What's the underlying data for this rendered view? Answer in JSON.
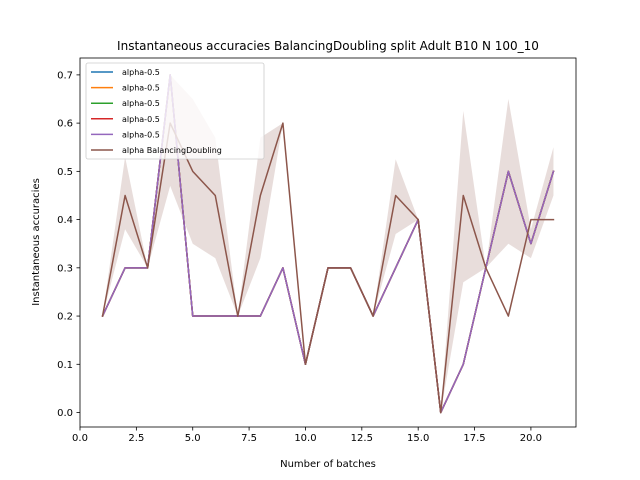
{
  "chart_data": {
    "type": "line",
    "title": "Instantaneous accuracies BalancingDoubling split Adult B10 N 100_10",
    "xlabel": "Number of batches",
    "ylabel": "Instantaneous accuracies",
    "xlim": [
      0.0,
      22.0
    ],
    "ylim": [
      -0.03,
      0.735
    ],
    "xticks": [
      0.0,
      2.5,
      5.0,
      7.5,
      10.0,
      12.5,
      15.0,
      17.5,
      20.0
    ],
    "xtick_labels": [
      "0.0",
      "2.5",
      "5.0",
      "7.5",
      "10.0",
      "12.5",
      "15.0",
      "17.5",
      "20.0"
    ],
    "yticks": [
      0.0,
      0.1,
      0.2,
      0.3,
      0.4,
      0.5,
      0.6,
      0.7
    ],
    "ytick_labels": [
      "0.0",
      "0.1",
      "0.2",
      "0.3",
      "0.4",
      "0.5",
      "0.6",
      "0.7"
    ],
    "grid": false,
    "legend_position": "top-left",
    "x": [
      1,
      2,
      3,
      4,
      5,
      6,
      7,
      8,
      9,
      10,
      11,
      12,
      13,
      14,
      15,
      16,
      17,
      18,
      19,
      20,
      21
    ],
    "series": [
      {
        "name": "alpha-0.5",
        "color": "#1f77b4",
        "values": [
          0.2,
          0.3,
          0.3,
          0.7,
          0.2,
          0.2,
          0.2,
          0.2,
          0.3,
          0.1,
          0.3,
          0.3,
          0.2,
          0.3,
          0.4,
          0.0,
          0.1,
          0.3,
          0.5,
          0.35,
          0.5
        ]
      },
      {
        "name": "alpha-0.5",
        "color": "#ff7f0e",
        "values": [
          0.2,
          0.3,
          0.3,
          0.7,
          0.2,
          0.2,
          0.2,
          0.2,
          0.3,
          0.1,
          0.3,
          0.3,
          0.2,
          0.3,
          0.4,
          0.0,
          0.1,
          0.3,
          0.5,
          0.35,
          0.5
        ]
      },
      {
        "name": "alpha-0.5",
        "color": "#2ca02c",
        "values": [
          0.2,
          0.3,
          0.3,
          0.7,
          0.2,
          0.2,
          0.2,
          0.2,
          0.3,
          0.1,
          0.3,
          0.3,
          0.2,
          0.3,
          0.4,
          0.0,
          0.1,
          0.3,
          0.5,
          0.35,
          0.5
        ]
      },
      {
        "name": "alpha-0.5",
        "color": "#d62728",
        "values": [
          0.2,
          0.3,
          0.3,
          0.7,
          0.2,
          0.2,
          0.2,
          0.2,
          0.3,
          0.1,
          0.3,
          0.3,
          0.2,
          0.3,
          0.4,
          0.0,
          0.1,
          0.3,
          0.5,
          0.35,
          0.5
        ]
      },
      {
        "name": "alpha-0.5",
        "color": "#9467bd",
        "values": [
          0.2,
          0.3,
          0.3,
          0.7,
          0.2,
          0.2,
          0.2,
          0.2,
          0.3,
          0.1,
          0.3,
          0.3,
          0.2,
          0.3,
          0.4,
          0.0,
          0.1,
          0.3,
          0.5,
          0.35,
          0.5
        ]
      },
      {
        "name": "alpha BalancingDoubling",
        "color": "#8c564b",
        "values": [
          0.2,
          0.45,
          0.3,
          0.6,
          0.5,
          0.45,
          0.2,
          0.45,
          0.6,
          0.1,
          0.3,
          0.3,
          0.2,
          0.45,
          0.4,
          0.0,
          0.45,
          0.3,
          0.2,
          0.4,
          0.4
        ],
        "band_lower": [
          0.2,
          0.38,
          0.3,
          0.47,
          0.35,
          0.32,
          0.2,
          0.32,
          0.6,
          0.1,
          0.3,
          0.3,
          0.2,
          0.37,
          0.4,
          0.0,
          0.27,
          0.3,
          0.35,
          0.32,
          0.45
        ],
        "band_upper": [
          0.2,
          0.53,
          0.3,
          0.7,
          0.65,
          0.57,
          0.2,
          0.57,
          0.6,
          0.1,
          0.3,
          0.3,
          0.2,
          0.525,
          0.4,
          0.0,
          0.625,
          0.3,
          0.65,
          0.38,
          0.55
        ]
      }
    ]
  }
}
